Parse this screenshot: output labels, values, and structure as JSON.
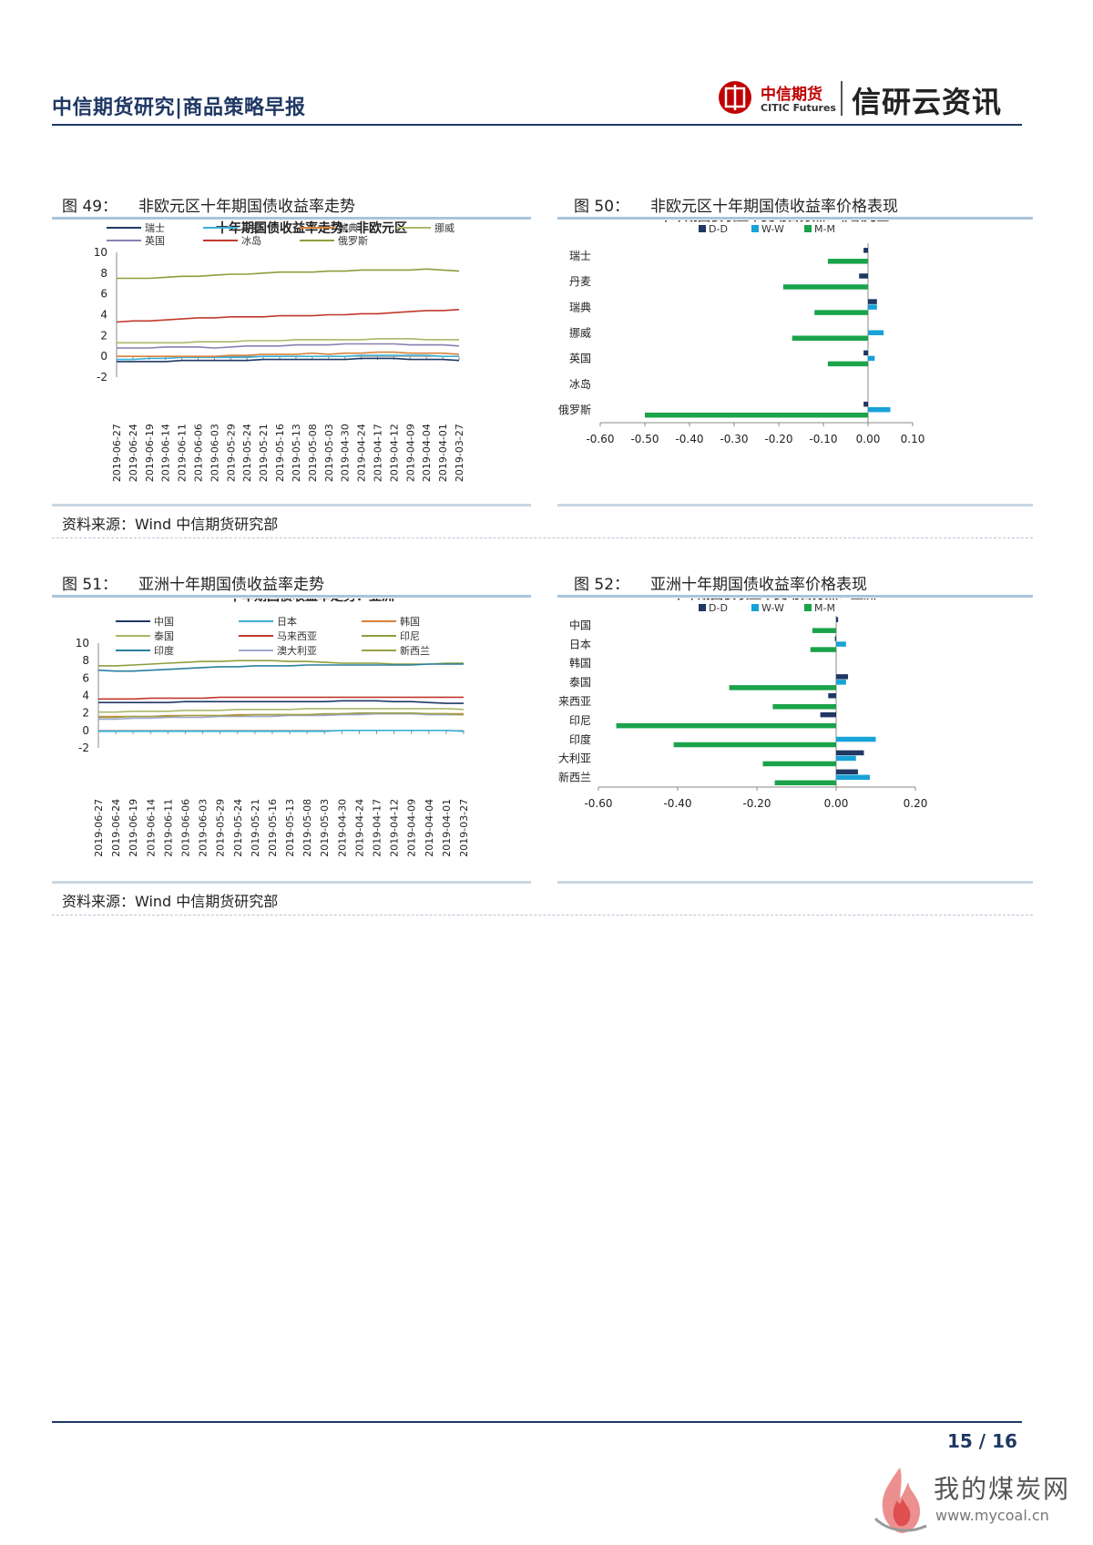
{
  "header": {
    "title": "中信期货研究|商品策略早报",
    "logo_cn": "中信期货",
    "logo_en": "CITIC Futures",
    "slogan": "信研云资讯"
  },
  "figures": [
    {
      "id": "fig49",
      "number": "图 49：",
      "title": "非欧元区十年期国债收益率走势",
      "source": "资料来源：Wind  中信期货研究部"
    },
    {
      "id": "fig50",
      "number": "图 50：",
      "title": "非欧元区十年期国债收益率价格表现"
    },
    {
      "id": "fig51",
      "number": "图 51：",
      "title": "亚洲十年期国债收益率走势",
      "source": "资料来源：Wind  中信期货研究部"
    },
    {
      "id": "fig52",
      "number": "图 52：",
      "title": "亚洲十年期国债收益率价格表现"
    }
  ],
  "chart_data": [
    {
      "type": "line",
      "title": "十年期国债收益率走势：非欧元区",
      "x": [
        "2019-06-27",
        "2019-06-24",
        "2019-06-19",
        "2019-06-14",
        "2019-06-11",
        "2019-06-06",
        "2019-06-03",
        "2019-05-29",
        "2019-05-24",
        "2019-05-21",
        "2019-05-16",
        "2019-05-13",
        "2019-05-08",
        "2019-05-03",
        "2019-04-30",
        "2019-04-24",
        "2019-04-17",
        "2019-04-12",
        "2019-04-09",
        "2019-04-04",
        "2019-04-01",
        "2019-03-27"
      ],
      "ylim": [
        -2,
        10
      ],
      "yticks": [
        -2,
        0,
        2,
        4,
        6,
        8,
        10
      ],
      "series": [
        {
          "name": "瑞士",
          "color": "#1f3864",
          "values": [
            -0.5,
            -0.5,
            -0.5,
            -0.5,
            -0.4,
            -0.4,
            -0.4,
            -0.4,
            -0.4,
            -0.3,
            -0.3,
            -0.3,
            -0.3,
            -0.3,
            -0.3,
            -0.2,
            -0.2,
            -0.2,
            -0.3,
            -0.3,
            -0.3,
            -0.4
          ]
        },
        {
          "name": "丹麦",
          "color": "#3ab0d8",
          "values": [
            -0.3,
            -0.3,
            -0.2,
            -0.2,
            -0.1,
            -0.1,
            -0.1,
            -0.1,
            -0.1,
            0,
            0,
            0,
            0,
            0,
            0,
            0.1,
            0.1,
            0.1,
            0.1,
            0.1,
            0,
            0
          ]
        },
        {
          "name": "瑞典",
          "color": "#d9823b",
          "values": [
            0,
            0,
            0,
            0,
            0,
            0,
            0,
            0.1,
            0.1,
            0.2,
            0.2,
            0.2,
            0.3,
            0.2,
            0.3,
            0.3,
            0.4,
            0.4,
            0.3,
            0.3,
            0.3,
            0.2
          ]
        },
        {
          "name": "挪威",
          "color": "#a9b86a",
          "values": [
            1.3,
            1.3,
            1.3,
            1.3,
            1.3,
            1.4,
            1.4,
            1.4,
            1.5,
            1.5,
            1.5,
            1.6,
            1.6,
            1.6,
            1.6,
            1.6,
            1.7,
            1.7,
            1.7,
            1.6,
            1.6,
            1.6
          ]
        },
        {
          "name": "英国",
          "color": "#8a7fb3",
          "values": [
            0.8,
            0.8,
            0.8,
            0.9,
            0.9,
            0.9,
            0.8,
            0.9,
            1.0,
            1.0,
            1.0,
            1.1,
            1.1,
            1.1,
            1.2,
            1.2,
            1.2,
            1.2,
            1.1,
            1.1,
            1.1,
            1.0
          ]
        },
        {
          "name": "冰岛",
          "color": "#c0392b",
          "values": [
            3.3,
            3.4,
            3.4,
            3.5,
            3.6,
            3.7,
            3.7,
            3.8,
            3.8,
            3.8,
            3.9,
            3.9,
            3.9,
            4.0,
            4.0,
            4.1,
            4.1,
            4.2,
            4.3,
            4.4,
            4.4,
            4.5
          ]
        },
        {
          "name": "俄罗斯",
          "color": "#8c9e3c",
          "values": [
            7.5,
            7.5,
            7.5,
            7.6,
            7.7,
            7.7,
            7.8,
            7.9,
            7.9,
            8.0,
            8.1,
            8.1,
            8.1,
            8.2,
            8.2,
            8.3,
            8.3,
            8.3,
            8.3,
            8.4,
            8.3,
            8.2
          ]
        }
      ]
    },
    {
      "type": "bar",
      "orientation": "horizontal",
      "title": "十年期国债收益率变动百分点：非欧元区",
      "categories": [
        "瑞士",
        "丹麦",
        "瑞典",
        "挪威",
        "英国",
        "冰岛",
        "俄罗斯"
      ],
      "xlim": [
        -0.6,
        0.1
      ],
      "xticks": [
        "-0.60",
        "-0.50",
        "-0.40",
        "-0.30",
        "-0.20",
        "-0.10",
        "0.00",
        "0.10"
      ],
      "tick_values": [
        -0.6,
        -0.5,
        -0.4,
        -0.3,
        -0.2,
        -0.1,
        0,
        0.1
      ],
      "series": [
        {
          "name": "D-D",
          "color": "#1f3864",
          "values": [
            -0.01,
            -0.02,
            0.02,
            0.0,
            -0.01,
            0.0,
            -0.01
          ]
        },
        {
          "name": "W-W",
          "color": "#17a2d8",
          "values": [
            0.0,
            0.0,
            0.02,
            0.035,
            0.015,
            0.0,
            0.05
          ]
        },
        {
          "name": "M-M",
          "color": "#1aa34a",
          "values": [
            -0.09,
            -0.19,
            -0.12,
            -0.17,
            -0.09,
            0.0,
            -0.5
          ]
        }
      ]
    },
    {
      "type": "line",
      "title": "十年期国债收益率走势：亚洲",
      "x": [
        "2019-06-27",
        "2019-06-24",
        "2019-06-19",
        "2019-06-14",
        "2019-06-11",
        "2019-06-06",
        "2019-06-03",
        "2019-05-29",
        "2019-05-24",
        "2019-05-21",
        "2019-05-16",
        "2019-05-13",
        "2019-05-08",
        "2019-05-03",
        "2019-04-30",
        "2019-04-24",
        "2019-04-17",
        "2019-04-12",
        "2019-04-09",
        "2019-04-04",
        "2019-04-01",
        "2019-03-27"
      ],
      "ylim": [
        -2,
        10
      ],
      "yticks": [
        -2,
        0,
        2,
        4,
        6,
        8,
        10
      ],
      "series": [
        {
          "name": "中国",
          "color": "#1f3864",
          "values": [
            3.2,
            3.2,
            3.2,
            3.2,
            3.2,
            3.3,
            3.3,
            3.3,
            3.3,
            3.3,
            3.3,
            3.3,
            3.3,
            3.3,
            3.4,
            3.4,
            3.4,
            3.3,
            3.3,
            3.2,
            3.1,
            3.1
          ]
        },
        {
          "name": "日本",
          "color": "#3ab0d8",
          "values": [
            -0.1,
            -0.1,
            -0.1,
            -0.1,
            -0.1,
            -0.1,
            -0.1,
            -0.1,
            -0.1,
            -0.1,
            -0.1,
            -0.1,
            -0.1,
            -0.1,
            0,
            0,
            0,
            0,
            0,
            0,
            0,
            -0.1
          ]
        },
        {
          "name": "韩国",
          "color": "#d9823b",
          "values": [
            1.6,
            1.6,
            1.6,
            1.6,
            1.7,
            1.7,
            1.7,
            1.7,
            1.8,
            1.8,
            1.8,
            1.8,
            1.8,
            1.8,
            1.9,
            1.9,
            1.9,
            1.9,
            1.9,
            1.9,
            1.9,
            1.9
          ]
        },
        {
          "name": "泰国",
          "color": "#a9b86a",
          "values": [
            2.1,
            2.1,
            2.2,
            2.2,
            2.2,
            2.3,
            2.3,
            2.3,
            2.4,
            2.4,
            2.4,
            2.4,
            2.5,
            2.5,
            2.5,
            2.5,
            2.5,
            2.5,
            2.5,
            2.5,
            2.5,
            2.4
          ]
        },
        {
          "name": "马来西亚",
          "color": "#c0392b",
          "values": [
            3.6,
            3.6,
            3.6,
            3.7,
            3.7,
            3.7,
            3.7,
            3.8,
            3.8,
            3.8,
            3.8,
            3.8,
            3.8,
            3.8,
            3.8,
            3.8,
            3.8,
            3.8,
            3.8,
            3.8,
            3.8,
            3.8
          ]
        },
        {
          "name": "印尼",
          "color": "#8c9e3c",
          "values": [
            7.4,
            7.4,
            7.5,
            7.6,
            7.7,
            7.8,
            7.9,
            7.9,
            8.0,
            8.0,
            8.0,
            7.9,
            7.9,
            7.8,
            7.7,
            7.7,
            7.7,
            7.6,
            7.6,
            7.6,
            7.7,
            7.7
          ]
        },
        {
          "name": "印度",
          "color": "#2a7f9e",
          "values": [
            6.9,
            6.8,
            6.8,
            6.9,
            7.0,
            7.1,
            7.2,
            7.3,
            7.3,
            7.4,
            7.4,
            7.4,
            7.5,
            7.5,
            7.5,
            7.5,
            7.5,
            7.5,
            7.5,
            7.6,
            7.6,
            7.6
          ]
        },
        {
          "name": "澳大利亚",
          "color": "#a0a8d0",
          "values": [
            1.3,
            1.3,
            1.4,
            1.4,
            1.5,
            1.5,
            1.5,
            1.6,
            1.6,
            1.6,
            1.6,
            1.7,
            1.7,
            1.7,
            1.8,
            1.8,
            1.9,
            1.9,
            1.9,
            1.8,
            1.8,
            1.8
          ]
        },
        {
          "name": "新西兰",
          "color": "#9aa04a",
          "values": [
            1.5,
            1.5,
            1.6,
            1.6,
            1.6,
            1.7,
            1.7,
            1.7,
            1.7,
            1.8,
            1.8,
            1.8,
            1.8,
            1.9,
            1.9,
            2.0,
            2.0,
            2.0,
            2.0,
            1.9,
            1.9,
            1.8
          ]
        }
      ]
    },
    {
      "type": "bar",
      "orientation": "horizontal",
      "title": "十年期国债收益率变动百分点：亚洲",
      "categories": [
        "中国",
        "日本",
        "韩国",
        "泰国",
        "马来西亚",
        "印尼",
        "印度",
        "澳大利亚",
        "新西兰"
      ],
      "xlim": [
        -0.6,
        0.2
      ],
      "xticks": [
        "-0.60",
        "-0.40",
        "-0.20",
        "0.00",
        "0.20"
      ],
      "tick_values": [
        -0.6,
        -0.4,
        -0.2,
        0,
        0.2
      ],
      "series": [
        {
          "name": "D-D",
          "color": "#1f3864",
          "values": [
            0.005,
            -0.003,
            0.0,
            0.03,
            -0.02,
            -0.04,
            0.0,
            0.07,
            0.055
          ]
        },
        {
          "name": "W-W",
          "color": "#17a2d8",
          "values": [
            0.0,
            0.025,
            0.0,
            0.025,
            0.0,
            0.0,
            0.1,
            0.05,
            0.085
          ]
        },
        {
          "name": "M-M",
          "color": "#1aa34a",
          "values": [
            -0.06,
            -0.065,
            0.0,
            -0.27,
            -0.16,
            -0.555,
            -0.41,
            -0.185,
            -0.155
          ]
        }
      ]
    }
  ],
  "footer": {
    "page": "15 / 16",
    "watermark_cn": "我的煤炭网",
    "watermark_url": "www.mycoal.cn"
  },
  "colors": {
    "brand": "#1f3864",
    "accent": "#c00000",
    "band": "#a9c4dc"
  }
}
